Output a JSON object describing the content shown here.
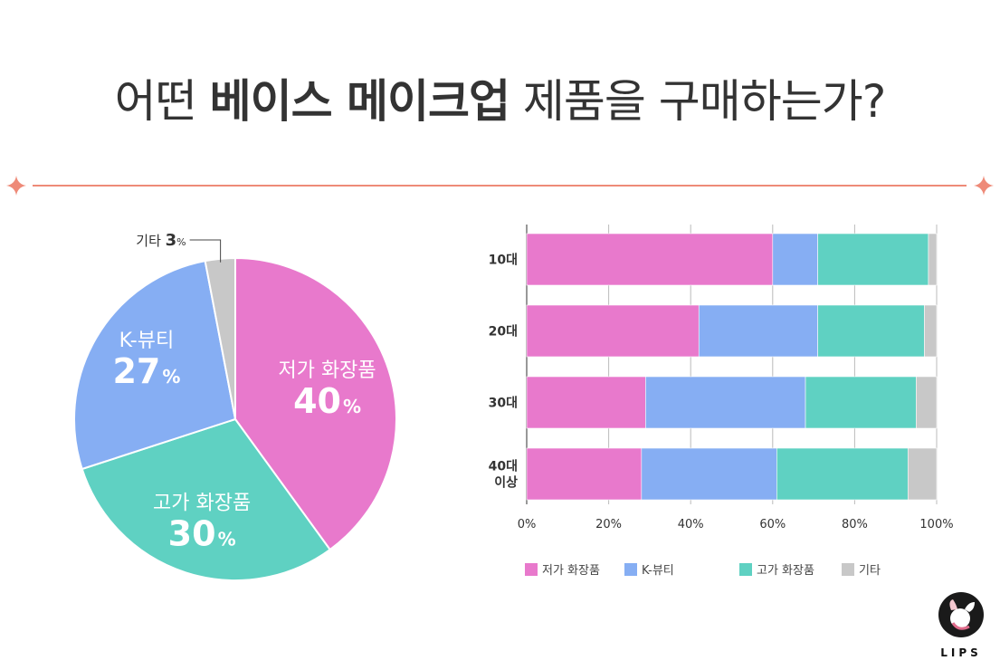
{
  "header": {
    "title_part1": "어떤 ",
    "title_bold": "베이스 메이크업",
    "title_part2": " 제품을 구매하는가?"
  },
  "colors": {
    "low_cost": "#E879CC",
    "k_beauty": "#86AEF3",
    "high_end": "#5FD1C2",
    "other": "#C8C8C8",
    "divider": "#EE8A78",
    "text": "#333333"
  },
  "logo": {
    "text": "LIPS"
  },
  "chart_data": [
    {
      "type": "pie",
      "slices": [
        {
          "label": "저가 화장품",
          "value": 40,
          "value_label": "40",
          "unit": "%",
          "color": "#E879CC"
        },
        {
          "label": "고가 화장품",
          "value": 30,
          "value_label": "30",
          "unit": "%",
          "color": "#5FD1C2"
        },
        {
          "label": "K-뷰티",
          "value": 27,
          "value_label": "27",
          "unit": "%",
          "color": "#86AEF3"
        },
        {
          "label": "기타",
          "value": 3,
          "value_label": "3",
          "unit": "%",
          "color": "#C8C8C8"
        }
      ]
    },
    {
      "type": "bar",
      "orientation": "horizontal",
      "stacked": true,
      "categories": [
        [
          "10대"
        ],
        [
          "20대"
        ],
        [
          "30대"
        ],
        [
          "40대",
          "이상"
        ]
      ],
      "series": [
        {
          "name": "저가 화장품",
          "color": "#E879CC",
          "values": [
            60,
            42,
            29,
            28
          ]
        },
        {
          "name": "K-뷰티",
          "color": "#86AEF3",
          "values": [
            11,
            29,
            39,
            33
          ]
        },
        {
          "name": "고가 화장품",
          "color": "#5FD1C2",
          "values": [
            27,
            26,
            27,
            32
          ]
        },
        {
          "name": "기타",
          "color": "#C8C8C8",
          "values": [
            2,
            3,
            5,
            7
          ]
        }
      ],
      "xlim": [
        0,
        100
      ],
      "xticks": [
        "0%",
        "20%",
        "40%",
        "60%",
        "80%",
        "100%"
      ],
      "grid": true,
      "legend": "bottom"
    }
  ]
}
